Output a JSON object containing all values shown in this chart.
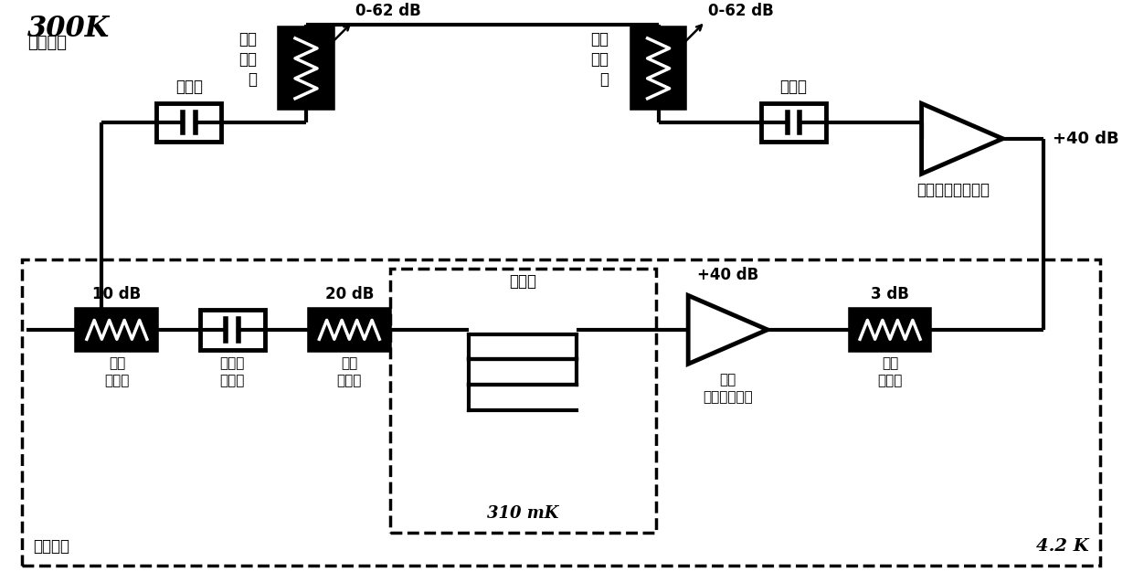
{
  "bg_color": "#ffffff",
  "line_color": "#000000",
  "line_width": 3.0,
  "dashed_lw": 2.5,
  "text_color": "#000000",
  "label_300K": "300K",
  "label_room": "常温环境",
  "label_dc_block1": "隔直器",
  "label_dc_block2": "隔直器",
  "label_att_adj1": "可调\n衰减\n器",
  "label_att_adj2": "可调\n衰减\n器",
  "label_0_62dB_1": "0-62 dB",
  "label_0_62dB_2": "0-62 dB",
  "label_room_amp": "常温低噪声放大器",
  "label_plus40_top": "+40 dB",
  "label_plus40_bot": "+40 dB",
  "label_10dB": "10 dB",
  "label_20dB": "20 dB",
  "label_3dB": "3 dB",
  "label_low_att1": "低温\n衰减器",
  "label_dual_iso": "双隔离\n隔直器",
  "label_low_att2": "低温\n衰减器",
  "label_sample": "样品盒",
  "label_low_amp": "低温\n低噪声放大器",
  "label_low_att3": "低温\n衰减器",
  "label_310mK": "310 mK",
  "label_4p2K": "4.2 K",
  "label_dewar": "低温杜瓦"
}
